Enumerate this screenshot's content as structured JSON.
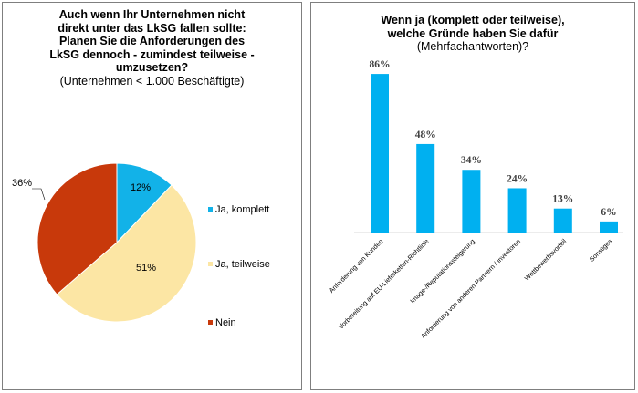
{
  "chart_data": [
    {
      "type": "pie",
      "title": "Auch wenn Ihr Unternehmen nicht direkt unter das LkSG fallen sollte: Planen Sie die Anforderungen des LkSG dennoch - zumindest teilweise - umzusetzen?",
      "title_lines": [
        "Auch wenn Ihr Unternehmen nicht",
        "direkt unter das LkSG fallen sollte:",
        "Planen Sie die Anforderungen des",
        "LkSG dennoch - zumindest teilweise -",
        "umzusetzen?"
      ],
      "subtitle": "(Unternehmen < 1.000 Beschäftigte)",
      "slices": [
        {
          "label": "Ja, komplett",
          "value": 12,
          "value_label": "12%",
          "color": "#12b2e8"
        },
        {
          "label": "Ja, teilweise",
          "value": 51,
          "value_label": "51%",
          "color": "#fce6a4"
        },
        {
          "label": "Nein",
          "value": 36,
          "value_label": "36%",
          "color": "#c8390b"
        }
      ],
      "legend_position": "right"
    },
    {
      "type": "bar",
      "title": "Wenn ja (komplett oder teilweise), welche Gründe haben Sie dafür",
      "title_lines": [
        "Wenn ja (komplett oder teilweise),",
        "welche Gründe haben Sie dafür"
      ],
      "subtitle": "(Mehrfachantworten)?",
      "categories": [
        "Anforderung von Kunden",
        "Vorbereitung auf EU-Lieferketten-Richtlinie",
        "Image-/Reputationssteigerung",
        "Anforderung von anderen Partnern / Investoren",
        "Wettbewerbsvorteil",
        "Sonstiges"
      ],
      "values": [
        86,
        48,
        34,
        24,
        13,
        6
      ],
      "value_labels": [
        "86%",
        "48%",
        "34%",
        "24%",
        "13%",
        "6%"
      ],
      "color": "#00b0f0",
      "ylim": [
        0,
        90
      ],
      "grid": false
    }
  ]
}
